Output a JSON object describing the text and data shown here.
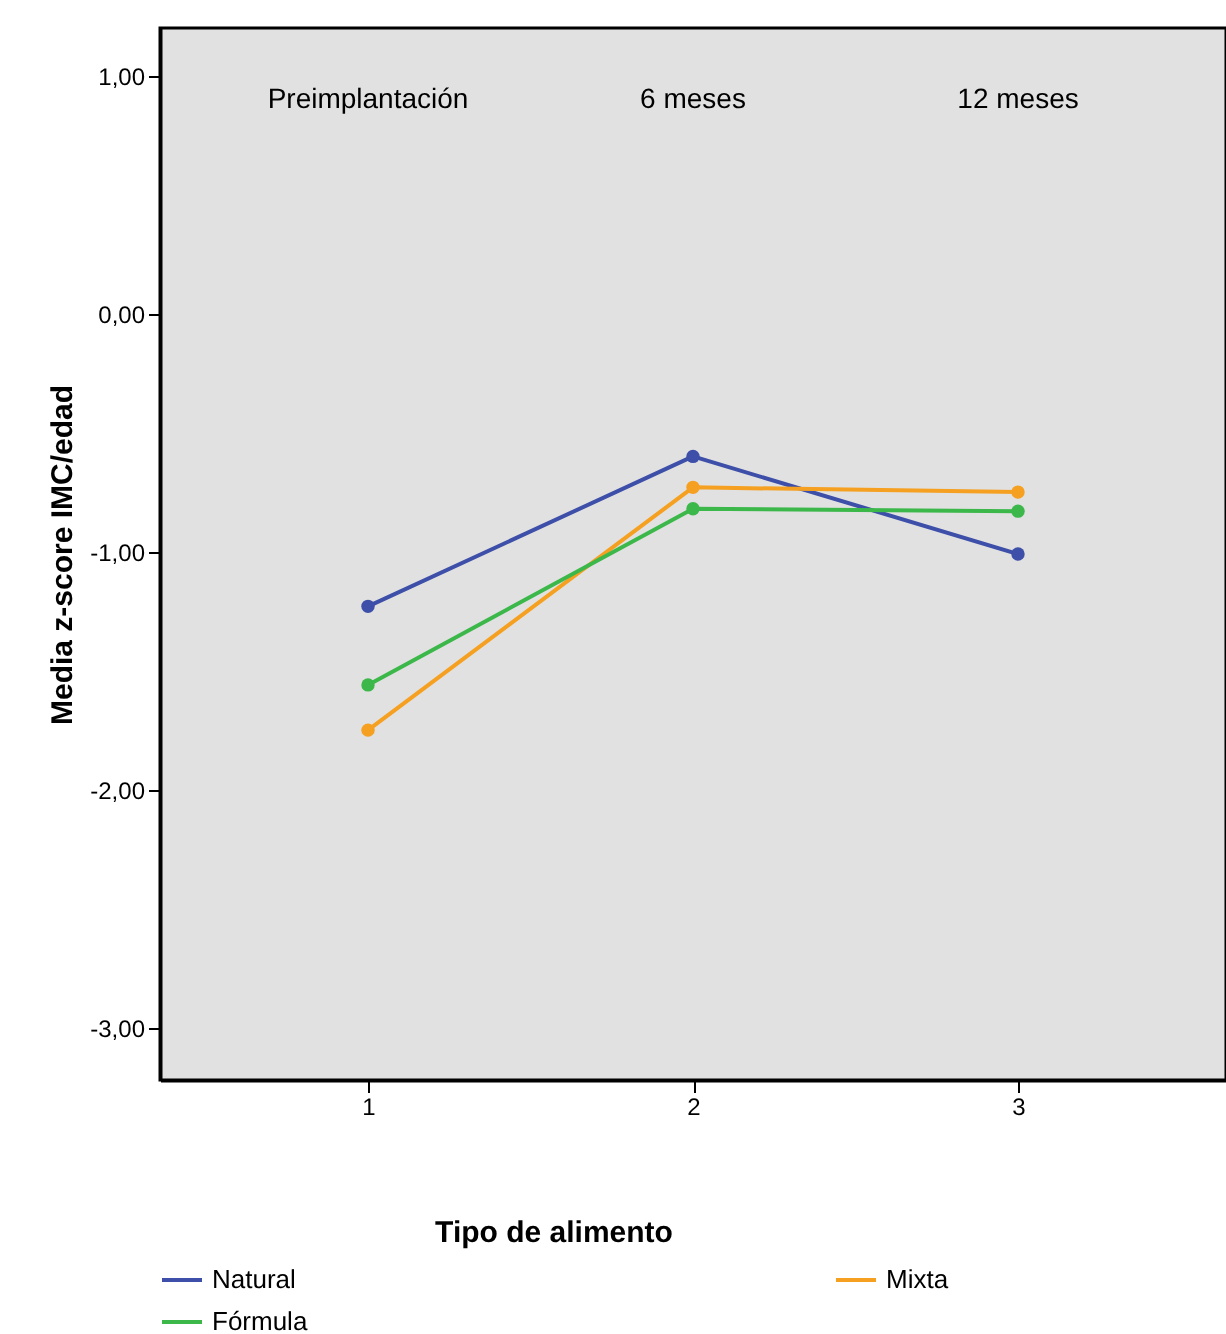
{
  "chart_data": {
    "type": "line",
    "ylabel": "Media z-score IMC/edad",
    "legend_title": "Tipo de alimento",
    "categories": [
      "1",
      "2",
      "3"
    ],
    "series": [
      {
        "name": "Natural",
        "color": "#3d4fa8",
        "values": [
          -1.23,
          -0.6,
          -1.01
        ]
      },
      {
        "name": "Mixta",
        "color": "#f5a020",
        "values": [
          -1.75,
          -0.73,
          -0.75
        ]
      },
      {
        "name": "Fórmula",
        "color": "#3cb84a",
        "values": [
          -1.56,
          -0.82,
          -0.83
        ]
      }
    ],
    "ylim": [
      -3.22,
      1.2
    ],
    "yticks": [
      {
        "value": -3,
        "label": "-3,00"
      },
      {
        "value": -2,
        "label": "-2,00"
      },
      {
        "value": -1,
        "label": "-1,00"
      },
      {
        "value": 0,
        "label": "0,00"
      },
      {
        "value": 1,
        "label": "1,00"
      }
    ],
    "annotations": [
      "Preimplantación",
      "6 meses",
      "12 meses"
    ],
    "marker": "circle",
    "legend": "bottom",
    "grid": false
  }
}
